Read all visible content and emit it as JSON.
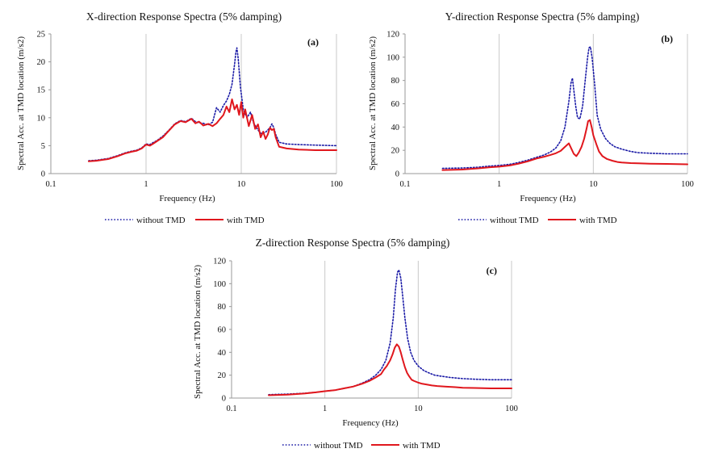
{
  "colors": {
    "without_tmd": "#1a1aa6",
    "with_tmd": "#e0171d",
    "gridline": "#c8c8c8",
    "axis": "#9a9a9a"
  },
  "chart_data": [
    {
      "id": "a",
      "type": "line",
      "title": "X-direction Response Spectra (5% damping)",
      "panel_label": "(a)",
      "xlabel": "Frequency (Hz)",
      "ylabel": "Spectral Acc. at TMD location (m/s2)",
      "xscale": "log",
      "xlim": [
        0.1,
        100
      ],
      "ylim": [
        0,
        25
      ],
      "xticks": [
        0.1,
        1,
        10,
        100
      ],
      "xtick_labels": [
        "0.1",
        "1",
        "10",
        "100"
      ],
      "yticks": [
        0,
        5,
        10,
        15,
        20,
        25
      ],
      "ytick_labels": [
        "0",
        "5",
        "10",
        "15",
        "20",
        "25"
      ],
      "series": [
        {
          "name": "without TMD",
          "style": "dotted",
          "x": [
            0.25,
            0.3,
            0.4,
            0.5,
            0.6,
            0.7,
            0.8,
            0.9,
            1.0,
            1.1,
            1.2,
            1.3,
            1.5,
            1.7,
            2.0,
            2.3,
            2.6,
            3.0,
            3.3,
            3.6,
            4.0,
            4.5,
            5.0,
            5.5,
            6.0,
            6.5,
            7.0,
            7.5,
            8.0,
            8.5,
            8.8,
            9.0,
            9.3,
            9.8,
            10.5,
            11.5,
            12.5,
            13.5,
            15,
            16,
            17,
            18,
            20,
            21,
            22,
            23,
            25,
            30,
            40,
            60,
            100
          ],
          "y": [
            2.3,
            2.4,
            2.7,
            3.2,
            3.7,
            4.0,
            4.2,
            4.6,
            5.3,
            5.2,
            5.6,
            5.9,
            6.7,
            7.6,
            8.9,
            9.5,
            9.3,
            9.9,
            9.3,
            9.1,
            9.0,
            8.7,
            9.2,
            11.8,
            11.0,
            12.2,
            13.0,
            14.2,
            16.0,
            19.5,
            21.8,
            22.5,
            20.5,
            15.5,
            11.5,
            10.0,
            11.0,
            9.0,
            7.8,
            7.2,
            7.3,
            7.4,
            8.2,
            8.9,
            8.2,
            7.0,
            5.6,
            5.3,
            5.2,
            5.1,
            5.0
          ]
        },
        {
          "name": "with TMD",
          "style": "solid",
          "x": [
            0.25,
            0.3,
            0.4,
            0.5,
            0.6,
            0.7,
            0.8,
            0.9,
            1.0,
            1.1,
            1.2,
            1.3,
            1.5,
            1.7,
            2.0,
            2.3,
            2.6,
            3.0,
            3.3,
            3.6,
            4.0,
            4.5,
            5.0,
            5.5,
            6.0,
            6.5,
            7.0,
            7.5,
            8.0,
            8.5,
            9.0,
            9.5,
            10.0,
            10.5,
            11.0,
            12.0,
            13.0,
            14.0,
            15.0,
            16.0,
            17.0,
            18.0,
            19.0,
            20.0,
            21.0,
            22.0,
            23.0,
            25.0,
            30.0,
            40.0,
            60.0,
            100.0
          ],
          "y": [
            2.2,
            2.3,
            2.6,
            3.1,
            3.6,
            3.9,
            4.1,
            4.5,
            5.2,
            5.0,
            5.4,
            5.8,
            6.5,
            7.5,
            8.8,
            9.4,
            9.2,
            9.8,
            9.0,
            9.3,
            8.6,
            8.9,
            8.5,
            9.0,
            9.8,
            10.5,
            12.0,
            11.0,
            13.3,
            11.5,
            12.3,
            10.5,
            12.8,
            10.0,
            11.5,
            8.5,
            10.5,
            8.0,
            8.8,
            6.5,
            7.5,
            6.2,
            7.0,
            8.2,
            7.8,
            8.0,
            6.5,
            4.8,
            4.5,
            4.3,
            4.2,
            4.2
          ]
        }
      ]
    },
    {
      "id": "b",
      "type": "line",
      "title": "Y-direction Response Spectra (5% damping)",
      "panel_label": "(b)",
      "xlabel": "Frequency (Hz)",
      "ylabel": "Spectral Acc. at TMD location (m/s2)",
      "xscale": "log",
      "xlim": [
        0.1,
        100
      ],
      "ylim": [
        0,
        120
      ],
      "xticks": [
        0.1,
        1,
        10,
        100
      ],
      "xtick_labels": [
        "0.1",
        "1",
        "10",
        "100"
      ],
      "yticks": [
        0,
        20,
        40,
        60,
        80,
        100,
        120
      ],
      "ytick_labels": [
        "0",
        "20",
        "40",
        "60",
        "80",
        "100",
        "120"
      ],
      "series": [
        {
          "name": "without TMD",
          "style": "dotted",
          "x": [
            0.25,
            0.4,
            0.6,
            0.8,
            1.0,
            1.3,
            1.6,
            2.0,
            2.5,
            3.0,
            3.5,
            4.0,
            4.5,
            5.0,
            5.5,
            5.8,
            6.0,
            6.2,
            6.5,
            6.8,
            7.2,
            7.7,
            8.2,
            8.7,
            9.0,
            9.3,
            9.7,
            10.3,
            11.0,
            12.0,
            13.5,
            15.0,
            17.0,
            20.0,
            25.0,
            30.0,
            40.0,
            60.0,
            100.0
          ],
          "y": [
            4.5,
            4.8,
            5.5,
            6.5,
            7.0,
            8.0,
            9.5,
            11.5,
            14.0,
            16.0,
            18.5,
            22.0,
            28.0,
            40.0,
            62.0,
            78.0,
            82.0,
            72.0,
            58.0,
            48.0,
            47.0,
            58.0,
            80.0,
            100.0,
            108.0,
            109.0,
            100.0,
            78.0,
            50.0,
            38.0,
            30.0,
            26.0,
            23.0,
            21.0,
            19.0,
            18.0,
            17.5,
            17.0,
            17.0
          ]
        },
        {
          "name": "with TMD",
          "style": "solid",
          "x": [
            0.25,
            0.4,
            0.6,
            0.8,
            1.0,
            1.3,
            1.6,
            2.0,
            2.5,
            3.0,
            3.5,
            4.0,
            4.5,
            5.0,
            5.5,
            5.8,
            6.2,
            6.6,
            7.0,
            7.5,
            8.0,
            8.5,
            8.8,
            9.2,
            9.6,
            10.0,
            10.8,
            11.5,
            12.5,
            14.0,
            16.0,
            18.0,
            20.0,
            25.0,
            30.0,
            40.0,
            60.0,
            100.0
          ],
          "y": [
            3.0,
            3.5,
            4.5,
            5.5,
            6.0,
            7.0,
            8.5,
            10.5,
            13.0,
            14.5,
            16.0,
            17.5,
            19.5,
            23.0,
            26.0,
            22.0,
            17.0,
            15.0,
            18.0,
            23.0,
            30.0,
            39.0,
            45.0,
            46.0,
            40.0,
            33.0,
            25.0,
            19.0,
            15.0,
            12.5,
            11.0,
            10.0,
            9.5,
            9.0,
            8.8,
            8.5,
            8.3,
            8.0
          ]
        }
      ]
    },
    {
      "id": "c",
      "type": "line",
      "title": "Z-direction Response Spectra (5% damping)",
      "panel_label": "(c)",
      "xlabel": "Frequency (Hz)",
      "ylabel": "Spectral Acc. at TMD location (m/s2)",
      "xscale": "log",
      "xlim": [
        0.1,
        100
      ],
      "ylim": [
        0,
        120
      ],
      "xticks": [
        0.1,
        1,
        10,
        100
      ],
      "xtick_labels": [
        "0.1",
        "1",
        "10",
        "100"
      ],
      "yticks": [
        0,
        20,
        40,
        60,
        80,
        100,
        120
      ],
      "ytick_labels": [
        "0",
        "20",
        "40",
        "60",
        "80",
        "100",
        "120"
      ],
      "series": [
        {
          "name": "without TMD",
          "style": "dotted",
          "x": [
            0.25,
            0.4,
            0.6,
            0.8,
            1.0,
            1.3,
            1.6,
            2.0,
            2.5,
            3.0,
            3.5,
            4.0,
            4.5,
            5.0,
            5.4,
            5.7,
            6.0,
            6.2,
            6.5,
            6.8,
            7.2,
            7.7,
            8.3,
            9.0,
            10.0,
            11.5,
            13.0,
            15.0,
            18.0,
            22.0,
            30.0,
            40.0,
            60.0,
            100.0
          ],
          "y": [
            3.0,
            3.5,
            4.2,
            5.0,
            6.0,
            7.0,
            8.5,
            10.0,
            13.0,
            16.0,
            20.0,
            25.0,
            33.0,
            48.0,
            70.0,
            95.0,
            110.0,
            112.0,
            105.0,
            90.0,
            70.0,
            52.0,
            40.0,
            33.0,
            28.0,
            24.0,
            22.0,
            20.0,
            19.0,
            18.0,
            17.0,
            16.5,
            16.0,
            16.0
          ]
        },
        {
          "name": "with TMD",
          "style": "solid",
          "x": [
            0.25,
            0.4,
            0.6,
            0.8,
            1.0,
            1.3,
            1.6,
            2.0,
            2.5,
            3.0,
            3.5,
            4.0,
            4.3,
            4.6,
            5.0,
            5.3,
            5.6,
            5.9,
            6.2,
            6.5,
            6.8,
            7.2,
            7.6,
            8.0,
            8.5,
            9.0,
            10.0,
            11.0,
            12.0,
            14.0,
            16.0,
            20.0,
            25.0,
            30.0,
            40.0,
            60.0,
            100.0
          ],
          "y": [
            2.5,
            3.0,
            4.0,
            5.0,
            6.0,
            7.0,
            8.5,
            10.0,
            12.5,
            15.0,
            18.0,
            21.0,
            25.0,
            28.0,
            33.0,
            38.0,
            44.0,
            47.0,
            45.0,
            40.0,
            34.0,
            27.0,
            22.0,
            19.0,
            16.0,
            15.0,
            13.5,
            12.5,
            12.0,
            11.0,
            10.5,
            10.0,
            9.5,
            9.0,
            8.8,
            8.5,
            8.5
          ]
        }
      ]
    }
  ]
}
